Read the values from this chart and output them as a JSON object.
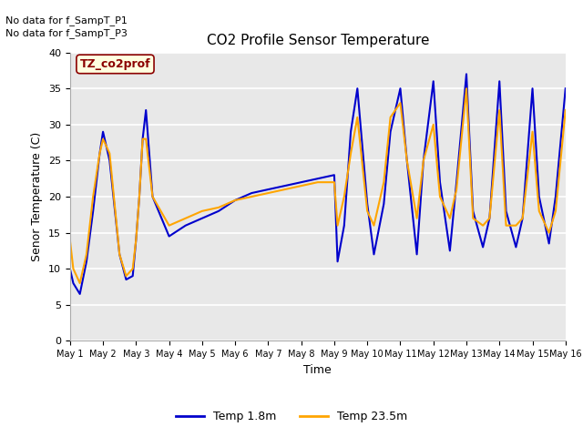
{
  "title": "CO2 Profile Sensor Temperature",
  "xlabel": "Time",
  "ylabel": "Senor Temperature (C)",
  "ylim": [
    0,
    40
  ],
  "yticks": [
    0,
    5,
    10,
    15,
    20,
    25,
    30,
    35,
    40
  ],
  "xtick_labels": [
    "May 1",
    "May 2",
    "May 3",
    "May 4",
    "May 5",
    "May 6",
    "May 7",
    "May 8",
    "May 9",
    "May 10",
    "May 11",
    "May 12",
    "May 13",
    "May 14",
    "May 15",
    "May 16"
  ],
  "background_color": "#e8e8e8",
  "fig_background": "#ffffff",
  "line1_color": "#0000cc",
  "line2_color": "#ffa500",
  "line1_label": "Temp 1.8m",
  "line2_label": "Temp 23.5m",
  "annotation_text": "TZ_co2prof",
  "no_data_text1": "No data for f_SampT_P1",
  "no_data_text2": "No data for f_SampT_P3",
  "line1_x": [
    0,
    0.1,
    0.3,
    0.5,
    0.7,
    0.9,
    1.0,
    1.2,
    1.5,
    1.7,
    1.9,
    2.0,
    2.1,
    2.2,
    2.3,
    2.5,
    3.0,
    3.5,
    4.0,
    4.5,
    5.0,
    5.5,
    6.0,
    6.5,
    7.0,
    7.5,
    8.0,
    8.1,
    8.3,
    8.5,
    8.7,
    9.0,
    9.2,
    9.5,
    9.7,
    10.0,
    10.2,
    10.5,
    10.7,
    11.0,
    11.2,
    11.5,
    11.7,
    12.0,
    12.2,
    12.5,
    12.7,
    13.0,
    13.2,
    13.5,
    13.7,
    14.0,
    14.2,
    14.5,
    14.7,
    15.0
  ],
  "line1_y": [
    10,
    8,
    6.5,
    11,
    18,
    26,
    29,
    25,
    12,
    8.5,
    9,
    14,
    20,
    28,
    32,
    20,
    14.5,
    16,
    17,
    18,
    19.5,
    20.5,
    21,
    21.5,
    22,
    22.5,
    23,
    11,
    16,
    29,
    35,
    19,
    12,
    19,
    29,
    35,
    25,
    12,
    25,
    36,
    22,
    12.5,
    22,
    37,
    18,
    13,
    17,
    36,
    18,
    13,
    17,
    35,
    20,
    13.5,
    20,
    35
  ],
  "line2_x": [
    0,
    0.1,
    0.3,
    0.5,
    0.7,
    0.9,
    1.0,
    1.2,
    1.5,
    1.7,
    1.9,
    2.0,
    2.1,
    2.2,
    2.3,
    2.5,
    3.0,
    3.5,
    4.0,
    4.5,
    5.0,
    5.5,
    6.0,
    6.5,
    7.0,
    7.5,
    8.0,
    8.1,
    8.3,
    8.5,
    8.7,
    9.0,
    9.2,
    9.5,
    9.7,
    10.0,
    10.2,
    10.5,
    10.7,
    11.0,
    11.2,
    11.5,
    11.7,
    12.0,
    12.2,
    12.5,
    12.7,
    13.0,
    13.2,
    13.5,
    13.7,
    14.0,
    14.2,
    14.5,
    14.7,
    15.0
  ],
  "line2_y": [
    14,
    10,
    8,
    12,
    20,
    26,
    28,
    26,
    12,
    9,
    10,
    14,
    20,
    28,
    28,
    20,
    16,
    17,
    18,
    18.5,
    19.5,
    20,
    20.5,
    21,
    21.5,
    22,
    22,
    16,
    20,
    26,
    31,
    18,
    16,
    22,
    31,
    33,
    25,
    17,
    25,
    30,
    20,
    17,
    21,
    35,
    17,
    16,
    17,
    32,
    16,
    16,
    17,
    29,
    18,
    15,
    18,
    32
  ]
}
